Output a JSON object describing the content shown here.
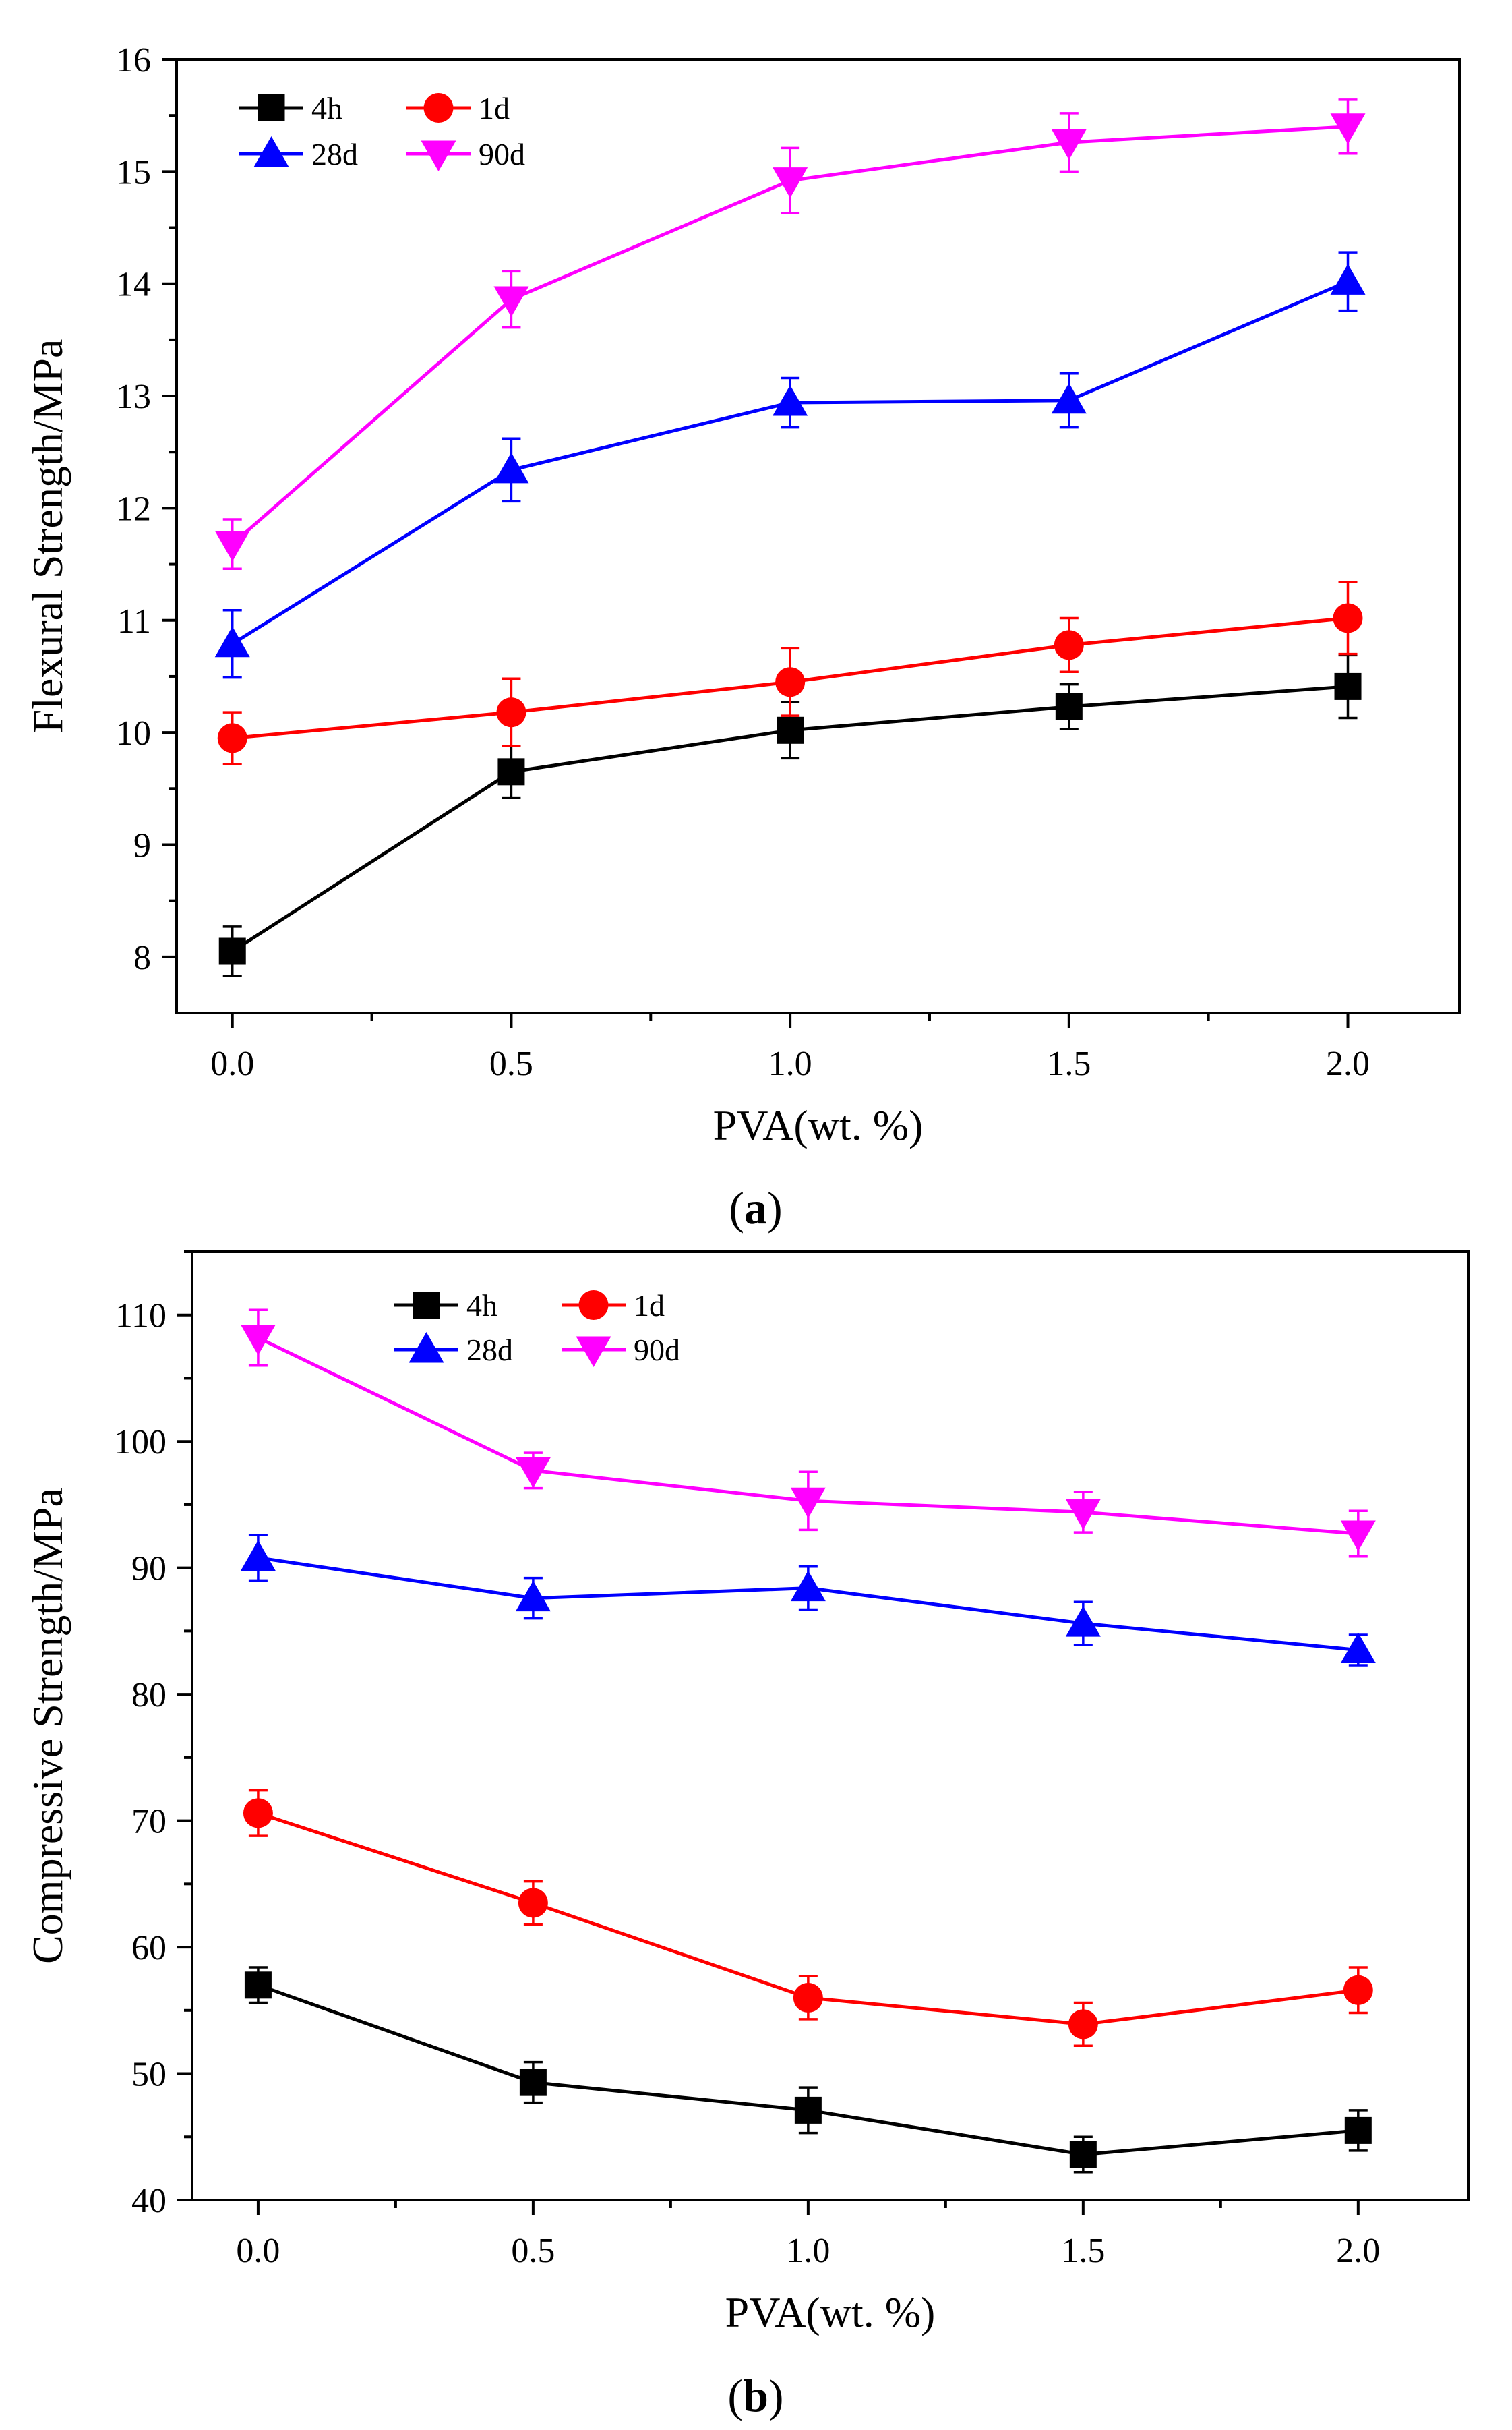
{
  "chart_data": [
    {
      "type": "line",
      "panel_label": "a",
      "xlabel": "PVA(wt. %)",
      "ylabel": "Flexural Strength/MPa",
      "x": [
        0.0,
        0.5,
        1.0,
        1.5,
        2.0
      ],
      "x_tick_labels": [
        "0.0",
        "0.5",
        "1.0",
        "1.5",
        "2.0"
      ],
      "xlim": [
        -0.1,
        2.2
      ],
      "ylim": [
        7.5,
        16
      ],
      "y_ticks": [
        8,
        9,
        10,
        11,
        12,
        13,
        14,
        15,
        16
      ],
      "grid": false,
      "legend": "top-left",
      "series": [
        {
          "name": "4h",
          "color": "#000000",
          "marker": "square",
          "values": [
            8.05,
            9.65,
            10.02,
            10.23,
            10.41
          ],
          "errors": [
            0.22,
            0.23,
            0.25,
            0.2,
            0.28
          ]
        },
        {
          "name": "1d",
          "color": "#ff0000",
          "marker": "circle",
          "values": [
            9.95,
            10.18,
            10.45,
            10.78,
            11.02
          ],
          "errors": [
            0.23,
            0.3,
            0.3,
            0.24,
            0.32
          ]
        },
        {
          "name": "28d",
          "color": "#0000ff",
          "marker": "triangle-up",
          "values": [
            10.79,
            12.34,
            12.94,
            12.96,
            14.02
          ],
          "errors": [
            0.3,
            0.28,
            0.22,
            0.24,
            0.26
          ]
        },
        {
          "name": "90d",
          "color": "#ff00ff",
          "marker": "triangle-down",
          "values": [
            11.68,
            13.86,
            14.92,
            15.26,
            15.4
          ],
          "errors": [
            0.22,
            0.25,
            0.29,
            0.26,
            0.24
          ]
        }
      ]
    },
    {
      "type": "line",
      "panel_label": "b",
      "xlabel": "PVA(wt. %)",
      "ylabel": "Compressive Strength/MPa",
      "x": [
        0.0,
        0.5,
        1.0,
        1.5,
        2.0
      ],
      "x_tick_labels": [
        "0.0",
        "0.5",
        "1.0",
        "1.5",
        "2.0"
      ],
      "xlim": [
        -0.12,
        2.2
      ],
      "ylim": [
        40,
        115
      ],
      "y_ticks": [
        40,
        50,
        60,
        70,
        80,
        90,
        100,
        110
      ],
      "grid": false,
      "legend": "top-center",
      "series": [
        {
          "name": "4h",
          "color": "#000000",
          "marker": "square",
          "values": [
            57.0,
            49.3,
            47.1,
            43.6,
            45.5
          ],
          "errors": [
            1.4,
            1.6,
            1.8,
            1.4,
            1.6
          ]
        },
        {
          "name": "1d",
          "color": "#ff0000",
          "marker": "circle",
          "values": [
            70.6,
            63.5,
            56.0,
            53.9,
            56.6
          ],
          "errors": [
            1.8,
            1.7,
            1.7,
            1.7,
            1.8
          ]
        },
        {
          "name": "28d",
          "color": "#0000ff",
          "marker": "triangle-up",
          "values": [
            90.8,
            87.6,
            88.4,
            85.6,
            83.5
          ],
          "errors": [
            1.8,
            1.6,
            1.7,
            1.7,
            1.2
          ]
        },
        {
          "name": "90d",
          "color": "#ff00ff",
          "marker": "triangle-down",
          "values": [
            108.2,
            97.7,
            95.3,
            94.4,
            92.7
          ],
          "errors": [
            2.2,
            1.4,
            2.3,
            1.6,
            1.8
          ]
        }
      ]
    }
  ]
}
